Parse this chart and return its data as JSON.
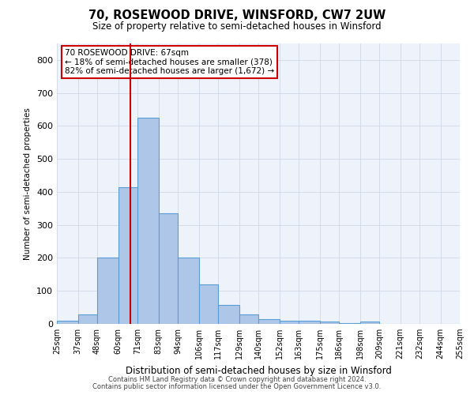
{
  "title": "70, ROSEWOOD DRIVE, WINSFORD, CW7 2UW",
  "subtitle": "Size of property relative to semi-detached houses in Winsford",
  "xlabel": "Distribution of semi-detached houses by size in Winsford",
  "ylabel": "Number of semi-detached properties",
  "footer_line1": "Contains HM Land Registry data © Crown copyright and database right 2024.",
  "footer_line2": "Contains public sector information licensed under the Open Government Licence v3.0.",
  "annotation_line1": "70 ROSEWOOD DRIVE: 67sqm",
  "annotation_line2": "← 18% of semi-detached houses are smaller (378)",
  "annotation_line3": "82% of semi-detached houses are larger (1,672) →",
  "property_size": 67,
  "bin_edges": [
    25,
    37,
    48,
    60,
    71,
    83,
    94,
    106,
    117,
    129,
    140,
    152,
    163,
    175,
    186,
    198,
    209,
    221,
    232,
    244,
    255
  ],
  "bin_counts": [
    10,
    28,
    200,
    415,
    625,
    335,
    200,
    120,
    58,
    28,
    15,
    10,
    10,
    6,
    3,
    8,
    0,
    0,
    0,
    0
  ],
  "bar_facecolor": "#aec6e8",
  "bar_edgecolor": "#5a9ed6",
  "vline_color": "#cc0000",
  "vline_x": 67,
  "annotation_box_edgecolor": "#cc0000",
  "annotation_box_facecolor": "#ffffff",
  "grid_color": "#d0d8e8",
  "background_color": "#eef2fa",
  "ylim": [
    0,
    850
  ],
  "yticks": [
    0,
    100,
    200,
    300,
    400,
    500,
    600,
    700,
    800
  ],
  "tick_labels": [
    "25sqm",
    "37sqm",
    "48sqm",
    "60sqm",
    "71sqm",
    "83sqm",
    "94sqm",
    "106sqm",
    "117sqm",
    "129sqm",
    "140sqm",
    "152sqm",
    "163sqm",
    "175sqm",
    "186sqm",
    "198sqm",
    "209sqm",
    "221sqm",
    "232sqm",
    "244sqm",
    "255sqm"
  ]
}
